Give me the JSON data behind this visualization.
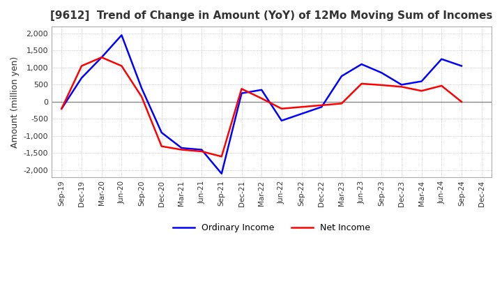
{
  "title": "[9612]  Trend of Change in Amount (YoY) of 12Mo Moving Sum of Incomes",
  "ylabel": "Amount (million yen)",
  "ylim": [
    -2200,
    2200
  ],
  "yticks": [
    -2000,
    -1500,
    -1000,
    -500,
    0,
    500,
    1000,
    1500,
    2000
  ],
  "x_labels": [
    "Sep-19",
    "Dec-19",
    "Mar-20",
    "Jun-20",
    "Sep-20",
    "Dec-20",
    "Mar-21",
    "Jun-21",
    "Sep-21",
    "Dec-21",
    "Mar-22",
    "Jun-22",
    "Sep-22",
    "Dec-22",
    "Mar-23",
    "Jun-23",
    "Sep-23",
    "Dec-23",
    "Mar-24",
    "Jun-24",
    "Sep-24",
    "Dec-24"
  ],
  "ordinary_income": [
    -200,
    700,
    1300,
    1950,
    400,
    -900,
    -1350,
    -1400,
    -2100,
    250,
    350,
    -550,
    -350,
    -150,
    750,
    1100,
    850,
    500,
    600,
    1250,
    1050,
    null
  ],
  "net_income": [
    -200,
    1050,
    1300,
    1050,
    150,
    -1300,
    -1400,
    -1450,
    -1600,
    380,
    100,
    -200,
    -150,
    -100,
    -50,
    530,
    490,
    440,
    320,
    470,
    0,
    null
  ],
  "ordinary_color": "#0000FF",
  "net_color": "#FF0000",
  "title_color": "#333333",
  "grid_color": "#aaaaaa",
  "background_color": "#ffffff",
  "legend_labels": [
    "Ordinary Income",
    "Net Income"
  ]
}
